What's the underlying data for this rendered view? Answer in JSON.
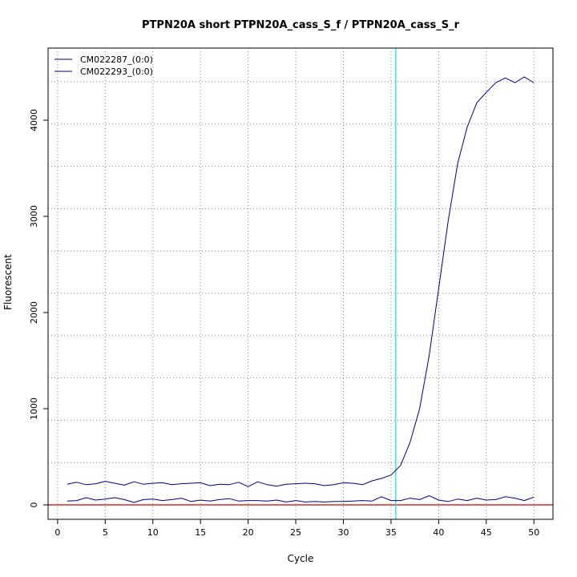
{
  "chart_data": {
    "type": "line",
    "title": "PTPN20A short PTPN20A_cass_S_f / PTPN20A_cass_S_r",
    "xlabel": "Cycle",
    "ylabel": "Fluorescent",
    "xlim": [
      -1,
      52
    ],
    "ylim": [
      -150,
      4750
    ],
    "x_ticks": [
      0,
      5,
      10,
      15,
      20,
      25,
      30,
      35,
      40,
      45,
      50
    ],
    "y_ticks": [
      0,
      1000,
      2000,
      3000,
      4000
    ],
    "x_grid": [
      0,
      5,
      10,
      15,
      20,
      25,
      30,
      35,
      40,
      45,
      50
    ],
    "y_grid": [
      0,
      440,
      880,
      1320,
      1760,
      2200,
      2640,
      3080,
      3520,
      3960,
      4400
    ],
    "grid": true,
    "legend_position": "top-left",
    "threshold_cycle": 35.5,
    "baseline": 0,
    "colors": {
      "series": "#000080",
      "threshold": "#00e5ee",
      "baseline": "#cc0000"
    },
    "x": [
      1,
      2,
      3,
      4,
      5,
      6,
      7,
      8,
      9,
      10,
      11,
      12,
      13,
      14,
      15,
      16,
      17,
      18,
      19,
      20,
      21,
      22,
      23,
      24,
      25,
      26,
      27,
      28,
      29,
      30,
      31,
      32,
      33,
      34,
      35,
      36,
      37,
      38,
      39,
      40,
      41,
      42,
      43,
      44,
      45,
      46,
      47,
      48,
      49,
      50
    ],
    "series": [
      {
        "name": "CM022287_(0:0)",
        "values": [
          215,
          235,
          210,
          220,
          245,
          225,
          205,
          240,
          215,
          225,
          230,
          210,
          220,
          225,
          230,
          200,
          215,
          210,
          235,
          190,
          240,
          210,
          195,
          215,
          220,
          225,
          220,
          200,
          210,
          230,
          225,
          210,
          250,
          275,
          310,
          410,
          650,
          1000,
          1550,
          2250,
          2950,
          3550,
          3930,
          4180,
          4290,
          4390,
          4440,
          4390,
          4450,
          4390
        ]
      },
      {
        "name": "CM022293_(0:0)",
        "values": [
          40,
          45,
          75,
          50,
          60,
          75,
          55,
          25,
          55,
          60,
          45,
          55,
          70,
          35,
          50,
          40,
          55,
          65,
          40,
          45,
          45,
          40,
          50,
          30,
          45,
          30,
          35,
          30,
          35,
          35,
          40,
          45,
          40,
          85,
          45,
          45,
          70,
          55,
          95,
          50,
          35,
          60,
          45,
          70,
          50,
          55,
          85,
          70,
          45,
          80
        ]
      }
    ]
  }
}
